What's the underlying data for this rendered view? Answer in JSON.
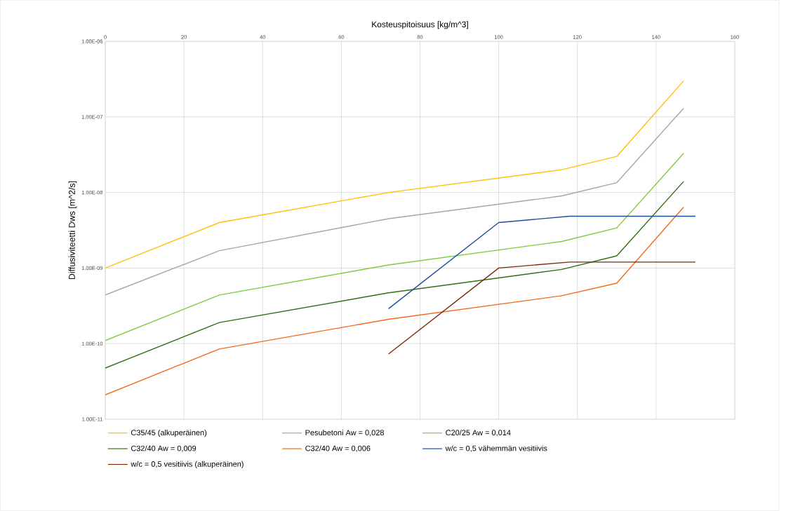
{
  "chart_data": {
    "type": "line",
    "xlabel": "Kosteuspitoisuus [kg/m^3]",
    "ylabel": "Diffusiviteetti Dws [m^2/s]",
    "log": "y",
    "grid": true,
    "legend": "bottom",
    "xlim": [
      0,
      160
    ],
    "xticks": [
      0,
      20,
      40,
      60,
      80,
      100,
      120,
      140,
      160
    ],
    "ylim": [
      1e-11,
      1e-06
    ],
    "yticks": [
      {
        "value": 1e-11,
        "label": "1.00E-11"
      },
      {
        "value": 1e-10,
        "label": "1.00E-10"
      },
      {
        "value": 1e-09,
        "label": "1.00E-09"
      },
      {
        "value": 1e-08,
        "label": "1.00E-08"
      },
      {
        "value": 1e-07,
        "label": "1.00E-07"
      },
      {
        "value": 1e-06,
        "label": "1.00E-06"
      }
    ],
    "series": [
      {
        "name": "C35/45 (alkuperäinen)",
        "color": "#ffc000",
        "x": [
          0,
          29,
          72,
          116,
          130,
          147
        ],
        "values": [
          1e-09,
          4e-09,
          1e-08,
          2e-08,
          3e-08,
          3e-07
        ]
      },
      {
        "name": "Pesubetoni Aw = 0,028",
        "color": "#a5a5a5",
        "x": [
          0,
          29,
          72,
          116,
          130,
          147
        ],
        "values": [
          4.4e-10,
          1.7e-09,
          4.5e-09,
          9e-09,
          1.35e-08,
          1.3e-07
        ]
      },
      {
        "name": "C20/25 Aw = 0,014",
        "color": "#7dcc3a",
        "x": [
          0,
          29,
          72,
          116,
          130,
          147
        ],
        "values": [
          1.1e-10,
          4.4e-10,
          1.1e-09,
          2.25e-09,
          3.4e-09,
          3.3e-08
        ]
      },
      {
        "name": "C32/40 Aw = 0,009",
        "color": "#2f6f14",
        "x": [
          0,
          29,
          72,
          116,
          130,
          147
        ],
        "values": [
          4.75e-11,
          1.9e-10,
          4.7e-10,
          9.6e-10,
          1.45e-09,
          1.4e-08
        ]
      },
      {
        "name": "C32/40 Aw = 0,006",
        "color": "#f26b1d",
        "x": [
          0,
          29,
          72,
          116,
          130,
          147
        ],
        "values": [
          2.1e-11,
          8.5e-11,
          2.1e-10,
          4.3e-10,
          6.3e-10,
          6.4e-09
        ]
      },
      {
        "name": "w/c = 0,5 vähemmän vesitiivis",
        "color": "#1f4e9c",
        "x": [
          72,
          100,
          118,
          150
        ],
        "values": [
          2.9e-10,
          4e-09,
          4.85e-09,
          4.85e-09
        ]
      },
      {
        "name": "w/c = 0,5 vesitiivis (alkuperäinen)",
        "color": "#7b2a0c",
        "x": [
          72,
          100,
          118,
          150
        ],
        "values": [
          7.3e-11,
          1e-09,
          1.2e-09,
          1.2e-09
        ]
      }
    ]
  }
}
